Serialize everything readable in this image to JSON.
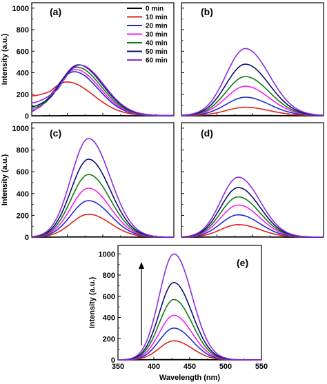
{
  "figure": {
    "legend": [
      {
        "label": "0 min",
        "color": "#000000"
      },
      {
        "label": "10 min",
        "color": "#e0201a"
      },
      {
        "label": "20 min",
        "color": "#1f2bd6"
      },
      {
        "label": "30 min",
        "color": "#f21ff2"
      },
      {
        "label": "40 min",
        "color": "#127a12"
      },
      {
        "label": "50 min",
        "color": "#0c0c6e"
      },
      {
        "label": "60 min",
        "color": "#8a2be2"
      }
    ],
    "legend_position": "top-right of panel (a)"
  },
  "chart_data": [
    {
      "type": "line",
      "panel_label": "(a)",
      "ylabel": "Intensity (a.u.)",
      "xlabel": "",
      "xlim": [
        350,
        550
      ],
      "ylim": [
        0,
        1050
      ],
      "yticks": [
        0,
        200,
        400,
        600,
        800,
        1000
      ],
      "xticks": [],
      "grid": false,
      "legend": "top-right",
      "series": [
        {
          "name": "0 min",
          "color": "#000000",
          "peak_x": 430,
          "peak_y": 2,
          "width": 40,
          "baseline": 0,
          "left_start": null
        },
        {
          "name": "10 min",
          "color": "#e0201a",
          "peak_x": 400,
          "peak_y": 305,
          "width": 35,
          "baseline": 10,
          "left_start": 185
        },
        {
          "name": "20 min",
          "color": "#1f2bd6",
          "peak_x": 410,
          "peak_y": 400,
          "width": 32,
          "baseline": 10,
          "left_start": 40
        },
        {
          "name": "30 min",
          "color": "#f21ff2",
          "peak_x": 412,
          "peak_y": 420,
          "width": 32,
          "baseline": 10,
          "left_start": 55
        },
        {
          "name": "40 min",
          "color": "#127a12",
          "peak_x": 414,
          "peak_y": 440,
          "width": 32,
          "baseline": 12,
          "left_start": 70
        },
        {
          "name": "50 min",
          "color": "#0c0c6e",
          "peak_x": 416,
          "peak_y": 462,
          "width": 32,
          "baseline": 12,
          "left_start": 85
        },
        {
          "name": "60 min",
          "color": "#8a2be2",
          "peak_x": 418,
          "peak_y": 460,
          "width": 32,
          "baseline": 12,
          "left_start": 120
        }
      ]
    },
    {
      "type": "line",
      "panel_label": "(b)",
      "ylabel": "",
      "xlabel": "",
      "xlim": [
        350,
        550
      ],
      "ylim": [
        0,
        1050
      ],
      "yticks": [],
      "xticks": [],
      "grid": false,
      "series": [
        {
          "name": "0 min",
          "color": "#000000",
          "peak_x": 440,
          "peak_y": 3,
          "width": 40,
          "baseline": 0
        },
        {
          "name": "10 min",
          "color": "#e0201a",
          "peak_x": 440,
          "peak_y": 75,
          "width": 32,
          "baseline": 5
        },
        {
          "name": "20 min",
          "color": "#1f2bd6",
          "peak_x": 440,
          "peak_y": 165,
          "width": 32,
          "baseline": 8
        },
        {
          "name": "30 min",
          "color": "#f21ff2",
          "peak_x": 440,
          "peak_y": 265,
          "width": 32,
          "baseline": 10
        },
        {
          "name": "40 min",
          "color": "#127a12",
          "peak_x": 440,
          "peak_y": 355,
          "width": 32,
          "baseline": 10
        },
        {
          "name": "50 min",
          "color": "#0c0c6e",
          "peak_x": 440,
          "peak_y": 470,
          "width": 32,
          "baseline": 10
        },
        {
          "name": "60 min",
          "color": "#8a2be2",
          "peak_x": 440,
          "peak_y": 615,
          "width": 32,
          "baseline": 10
        }
      ]
    },
    {
      "type": "line",
      "panel_label": "(c)",
      "ylabel": "Intensity (a.u.)",
      "xlabel": "",
      "xlim": [
        350,
        550
      ],
      "ylim": [
        0,
        1050
      ],
      "yticks": [
        0,
        200,
        400,
        600,
        800,
        1000
      ],
      "xticks": [],
      "grid": false,
      "series": [
        {
          "name": "0 min",
          "color": "#000000",
          "peak_x": 430,
          "peak_y": 3,
          "width": 40,
          "baseline": 0
        },
        {
          "name": "10 min",
          "color": "#e0201a",
          "peak_x": 430,
          "peak_y": 210,
          "width": 29,
          "baseline": 0
        },
        {
          "name": "20 min",
          "color": "#1f2bd6",
          "peak_x": 430,
          "peak_y": 335,
          "width": 29,
          "baseline": 0
        },
        {
          "name": "30 min",
          "color": "#f21ff2",
          "peak_x": 430,
          "peak_y": 450,
          "width": 29,
          "baseline": 0
        },
        {
          "name": "40 min",
          "color": "#127a12",
          "peak_x": 430,
          "peak_y": 575,
          "width": 29,
          "baseline": 0
        },
        {
          "name": "50 min",
          "color": "#0c0c6e",
          "peak_x": 430,
          "peak_y": 715,
          "width": 29,
          "baseline": 0
        },
        {
          "name": "60 min",
          "color": "#8a2be2",
          "peak_x": 430,
          "peak_y": 905,
          "width": 29,
          "baseline": 0
        }
      ]
    },
    {
      "type": "line",
      "panel_label": "(d)",
      "ylabel": "",
      "xlabel": "",
      "xlim": [
        350,
        550
      ],
      "ylim": [
        0,
        1050
      ],
      "yticks": [],
      "xticks": [],
      "grid": false,
      "series": [
        {
          "name": "0 min",
          "color": "#000000",
          "peak_x": 430,
          "peak_y": 3,
          "width": 40,
          "baseline": 0
        },
        {
          "name": "10 min",
          "color": "#e0201a",
          "peak_x": 430,
          "peak_y": 115,
          "width": 29,
          "baseline": 0
        },
        {
          "name": "20 min",
          "color": "#1f2bd6",
          "peak_x": 430,
          "peak_y": 205,
          "width": 29,
          "baseline": 0
        },
        {
          "name": "30 min",
          "color": "#f21ff2",
          "peak_x": 430,
          "peak_y": 295,
          "width": 29,
          "baseline": 0
        },
        {
          "name": "40 min",
          "color": "#127a12",
          "peak_x": 430,
          "peak_y": 370,
          "width": 29,
          "baseline": 0
        },
        {
          "name": "50 min",
          "color": "#0c0c6e",
          "peak_x": 430,
          "peak_y": 455,
          "width": 29,
          "baseline": 0
        },
        {
          "name": "60 min",
          "color": "#8a2be2",
          "peak_x": 430,
          "peak_y": 550,
          "width": 29,
          "baseline": 0
        }
      ]
    },
    {
      "type": "line",
      "panel_label": "(e)",
      "ylabel": "Intensity (a.u.)",
      "xlabel": "Wavelength (nm)",
      "xlim": [
        350,
        550
      ],
      "ylim": [
        0,
        1080
      ],
      "yticks": [
        0,
        200,
        400,
        600,
        800,
        1000
      ],
      "xticks": [
        350,
        400,
        450,
        500,
        550
      ],
      "grid": false,
      "annotation": "upward arrow indicating increasing time",
      "series": [
        {
          "name": "0 min",
          "color": "#000000",
          "peak_x": 428,
          "peak_y": 3,
          "width": 40,
          "baseline": 0
        },
        {
          "name": "10 min",
          "color": "#e0201a",
          "peak_x": 428,
          "peak_y": 180,
          "width": 24,
          "baseline": 0
        },
        {
          "name": "20 min",
          "color": "#1f2bd6",
          "peak_x": 428,
          "peak_y": 300,
          "width": 24,
          "baseline": 0
        },
        {
          "name": "30 min",
          "color": "#f21ff2",
          "peak_x": 428,
          "peak_y": 420,
          "width": 24,
          "baseline": 0
        },
        {
          "name": "40 min",
          "color": "#127a12",
          "peak_x": 428,
          "peak_y": 570,
          "width": 24,
          "baseline": 0
        },
        {
          "name": "50 min",
          "color": "#0c0c6e",
          "peak_x": 428,
          "peak_y": 730,
          "width": 24,
          "baseline": 0
        },
        {
          "name": "60 min",
          "color": "#8a2be2",
          "peak_x": 428,
          "peak_y": 1000,
          "width": 24,
          "baseline": 0
        }
      ]
    }
  ]
}
